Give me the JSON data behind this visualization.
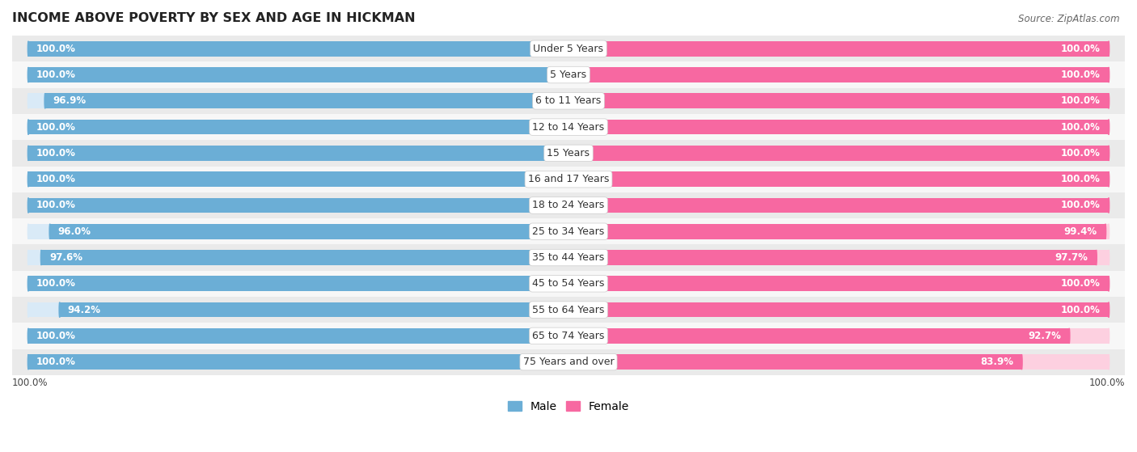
{
  "title": "INCOME ABOVE POVERTY BY SEX AND AGE IN HICKMAN",
  "source": "Source: ZipAtlas.com",
  "categories": [
    "Under 5 Years",
    "5 Years",
    "6 to 11 Years",
    "12 to 14 Years",
    "15 Years",
    "16 and 17 Years",
    "18 to 24 Years",
    "25 to 34 Years",
    "35 to 44 Years",
    "45 to 54 Years",
    "55 to 64 Years",
    "65 to 74 Years",
    "75 Years and over"
  ],
  "male_values": [
    100.0,
    100.0,
    96.9,
    100.0,
    100.0,
    100.0,
    100.0,
    96.0,
    97.6,
    100.0,
    94.2,
    100.0,
    100.0
  ],
  "female_values": [
    100.0,
    100.0,
    100.0,
    100.0,
    100.0,
    100.0,
    100.0,
    99.4,
    97.7,
    100.0,
    100.0,
    92.7,
    83.9
  ],
  "male_color": "#6BAED6",
  "female_color": "#F768A1",
  "male_track_color": "#D9EAF7",
  "female_track_color": "#FDD0E0",
  "row_even_color": "#EAEAEA",
  "row_odd_color": "#F7F7F7",
  "bar_height": 0.58,
  "bg_color": "#ffffff",
  "label_fontsize": 9.0,
  "title_fontsize": 11.5,
  "value_fontsize": 8.5,
  "legend_fontsize": 10
}
